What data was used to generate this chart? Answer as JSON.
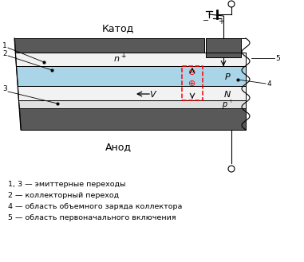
{
  "bg_color": "#ffffff",
  "cathode_label": "Катод",
  "anode_label": "Анод",
  "legend_lines": [
    "1, 3 — эмиттерные переходы",
    "2 — коллекторный переход",
    "4 — область объемного заряда коллектора",
    "5 — область первоначального включения"
  ],
  "dark_gray": "#595959",
  "light_blue": "#aad4e8",
  "near_white": "#f2f2f2",
  "pale_gray": "#e0e0e0"
}
